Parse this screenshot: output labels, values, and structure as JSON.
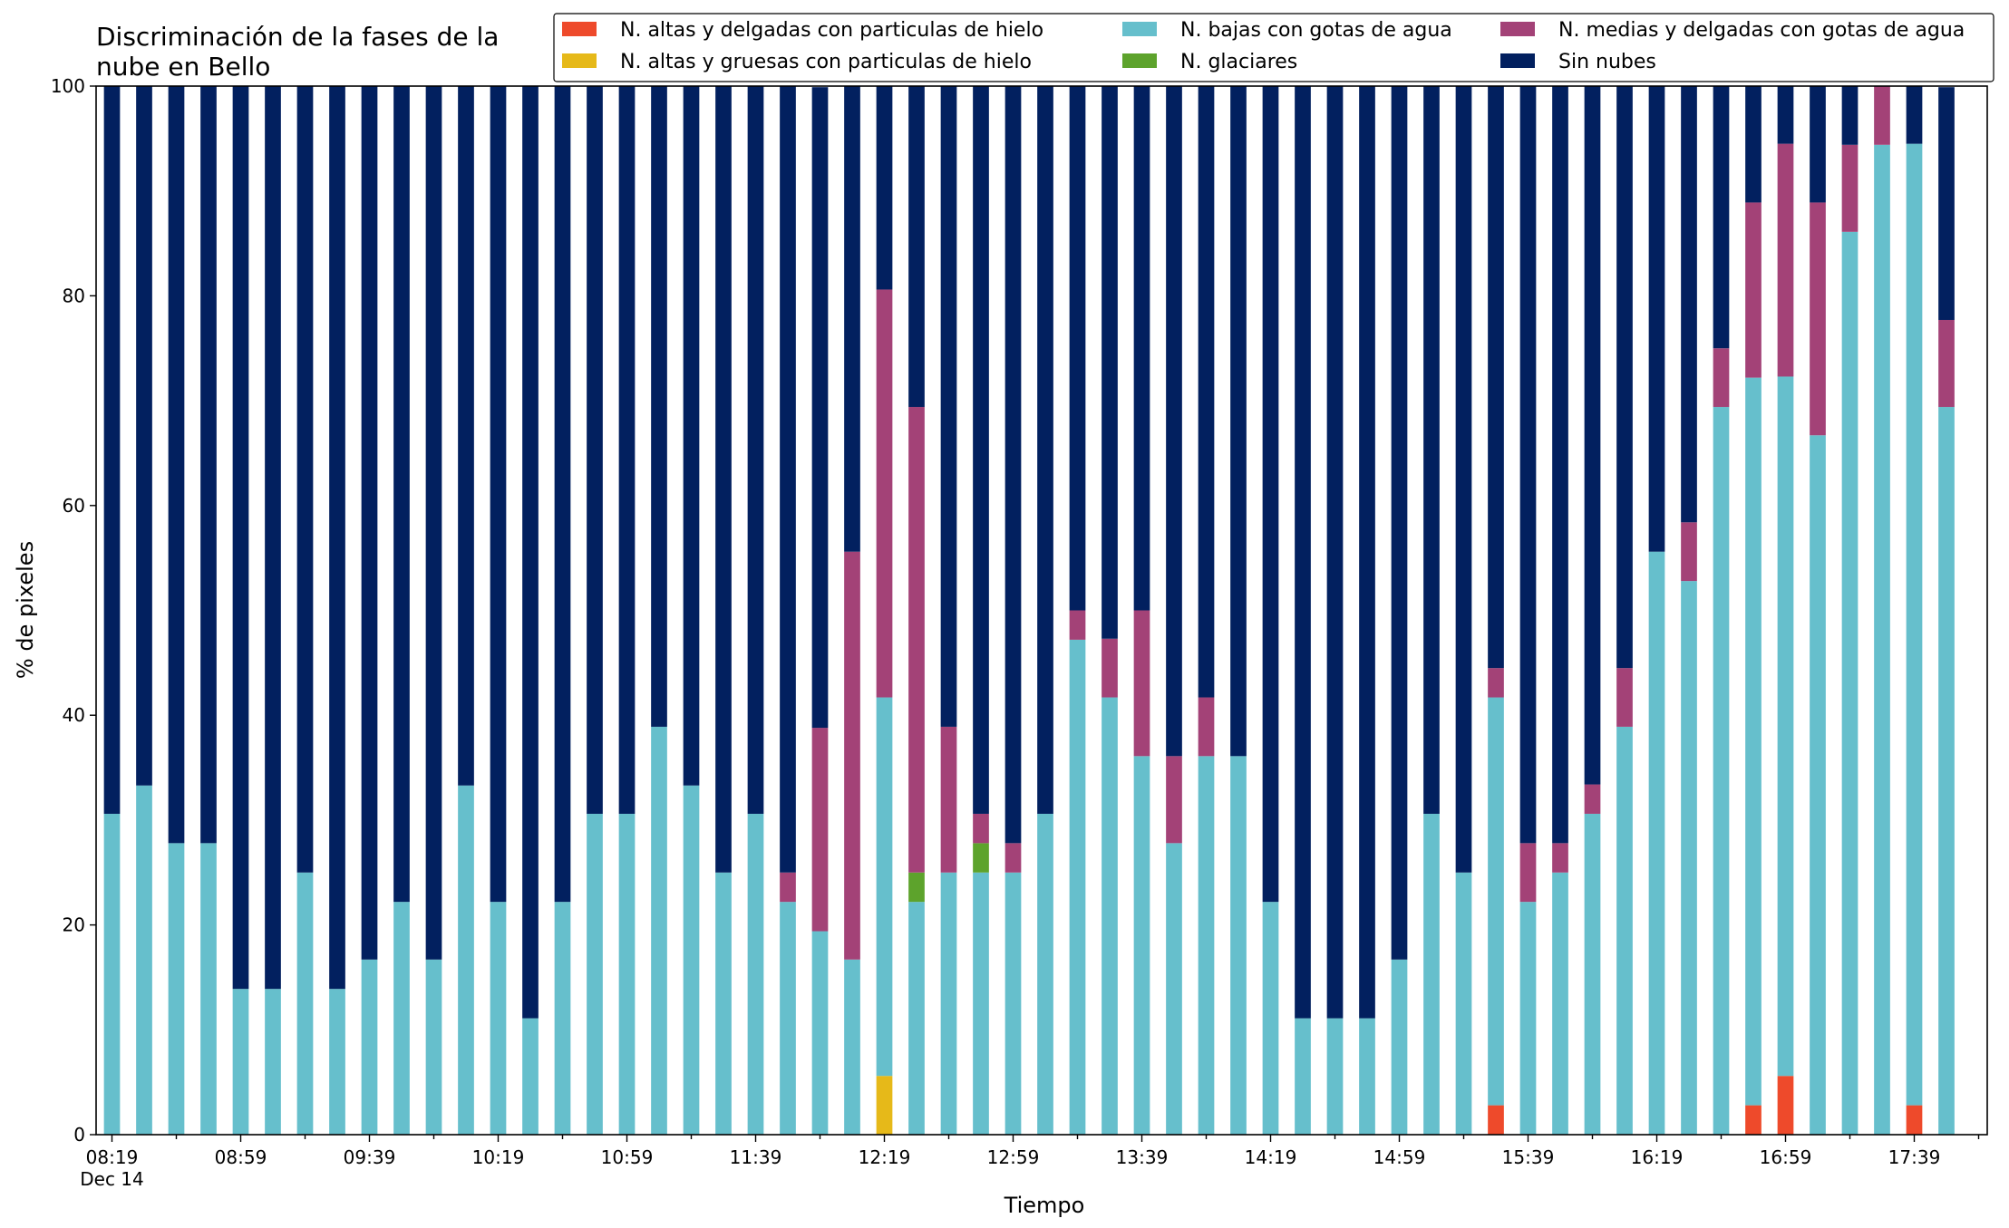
{
  "chart_data": {
    "type": "bar",
    "stacked": true,
    "title": "Discriminación de la fases de la\nnube en Bello",
    "xlabel": "Tiempo",
    "ylabel": "% de pixeles",
    "ylim": [
      0,
      100
    ],
    "yticks": [
      0,
      20,
      40,
      60,
      80,
      100
    ],
    "grid": false,
    "legend_position": "top-right",
    "x_start_label": "08:19",
    "x_start_sublabel": "Dec 14",
    "x_tick_labels": [
      "08:19",
      "08:59",
      "09:39",
      "10:19",
      "10:59",
      "11:39",
      "12:19",
      "12:59",
      "13:39",
      "14:19",
      "14:59",
      "15:39",
      "16:19",
      "16:59",
      "17:39"
    ],
    "categories": [
      "08:19",
      "08:29",
      "08:39",
      "08:49",
      "08:59",
      "09:09",
      "09:19",
      "09:29",
      "09:39",
      "09:49",
      "09:59",
      "10:09",
      "10:19",
      "10:29",
      "10:39",
      "10:49",
      "10:59",
      "11:09",
      "11:19",
      "11:29",
      "11:39",
      "11:49",
      "11:59",
      "12:09",
      "12:19",
      "12:29",
      "12:39",
      "12:49",
      "12:59",
      "13:09",
      "13:19",
      "13:29",
      "13:39",
      "13:49",
      "13:59",
      "14:09",
      "14:19",
      "14:29",
      "14:39",
      "14:49",
      "14:59",
      "15:09",
      "15:19",
      "15:29",
      "15:39",
      "15:49",
      "15:59",
      "16:09",
      "16:19",
      "16:29",
      "16:39",
      "16:49",
      "16:59",
      "17:09",
      "17:19",
      "17:29",
      "17:39",
      "17:49"
    ],
    "series": [
      {
        "name": "N. altas y delgadas con particulas de hielo",
        "color": "#ee4a2b",
        "values": [
          0,
          0,
          0,
          0,
          0,
          0,
          0,
          0,
          0,
          0,
          0,
          0,
          0,
          0,
          0,
          0,
          0,
          0,
          0,
          0,
          0,
          0,
          0,
          0,
          0,
          0,
          0,
          0,
          0,
          0,
          0,
          0,
          0,
          0,
          0,
          0,
          0,
          0,
          0,
          0,
          0,
          0,
          0,
          2.8,
          0,
          0,
          0,
          0,
          0,
          0,
          0,
          2.8,
          5.6,
          0,
          0,
          0,
          2.8,
          0
        ]
      },
      {
        "name": "N. altas y gruesas con particulas de hielo",
        "color": "#e6b919",
        "values": [
          0,
          0,
          0,
          0,
          0,
          0,
          0,
          0,
          0,
          0,
          0,
          0,
          0,
          0,
          0,
          0,
          0,
          0,
          0,
          0,
          0,
          0,
          0,
          0,
          5.6,
          0,
          0,
          0,
          0,
          0,
          0,
          0,
          0,
          0,
          0,
          0,
          0,
          0,
          0,
          0,
          0,
          0,
          0,
          0,
          0,
          0,
          0,
          0,
          0,
          0,
          0,
          0,
          0,
          0,
          0,
          0,
          0,
          0
        ]
      },
      {
        "name": "N. bajas con gotas de agua",
        "color": "#66bfcc",
        "values": [
          30.6,
          33.3,
          27.8,
          27.8,
          13.9,
          13.9,
          25.0,
          13.9,
          16.7,
          22.2,
          16.7,
          33.3,
          22.2,
          11.1,
          22.2,
          30.6,
          30.6,
          38.9,
          33.3,
          25.0,
          30.6,
          22.2,
          19.4,
          16.7,
          36.1,
          22.2,
          25.0,
          25.0,
          25.0,
          30.6,
          47.2,
          41.7,
          36.1,
          27.8,
          36.1,
          36.1,
          22.2,
          11.1,
          11.1,
          11.1,
          16.7,
          30.6,
          25.0,
          38.9,
          22.2,
          25.0,
          30.6,
          38.9,
          55.6,
          52.8,
          69.4,
          69.4,
          66.7,
          66.7,
          86.1,
          94.4,
          91.7,
          69.4
        ]
      },
      {
        "name": "N. glaciares",
        "color": "#5da32c",
        "values": [
          0,
          0,
          0,
          0,
          0,
          0,
          0,
          0,
          0,
          0,
          0,
          0,
          0,
          0,
          0,
          0,
          0,
          0,
          0,
          0,
          0,
          0,
          0,
          0,
          0,
          2.8,
          0,
          2.8,
          0,
          0,
          0,
          0,
          0,
          0,
          0,
          0,
          0,
          0,
          0,
          0,
          0,
          0,
          0,
          0,
          0,
          0,
          0,
          0,
          0,
          0,
          0,
          0,
          0,
          0,
          0,
          0,
          0,
          0
        ]
      },
      {
        "name": "N. medias y delgadas con gotas de agua",
        "color": "#a34277",
        "values": [
          0,
          0,
          0,
          0,
          0,
          0,
          0,
          0,
          0,
          0,
          0,
          0,
          0,
          0,
          0,
          0,
          0,
          0,
          0,
          0,
          0,
          2.8,
          19.4,
          38.9,
          38.9,
          44.4,
          13.9,
          2.8,
          2.8,
          0,
          2.8,
          5.6,
          13.9,
          8.3,
          5.6,
          0,
          0,
          0,
          0,
          0,
          0,
          0,
          0,
          2.8,
          5.6,
          2.8,
          2.8,
          5.6,
          0,
          5.6,
          5.6,
          16.7,
          22.2,
          22.2,
          8.3,
          5.6,
          0,
          8.3
        ]
      },
      {
        "name": "Sin nubes",
        "color": "#02205f",
        "values": [
          69.4,
          66.7,
          72.2,
          72.2,
          86.1,
          86.1,
          75.0,
          86.1,
          83.3,
          77.8,
          83.3,
          66.7,
          77.8,
          88.9,
          77.8,
          69.4,
          69.4,
          61.1,
          66.7,
          75.0,
          69.4,
          75.0,
          61.1,
          44.4,
          19.4,
          30.6,
          61.1,
          69.4,
          72.2,
          69.4,
          50.0,
          52.8,
          50.0,
          63.9,
          58.3,
          63.9,
          77.8,
          88.9,
          88.9,
          88.9,
          83.3,
          69.4,
          75.0,
          55.6,
          72.2,
          72.2,
          66.7,
          55.6,
          44.4,
          41.7,
          25.0,
          11.1,
          5.6,
          11.1,
          5.6,
          0,
          5.5,
          22.2
        ]
      }
    ]
  }
}
